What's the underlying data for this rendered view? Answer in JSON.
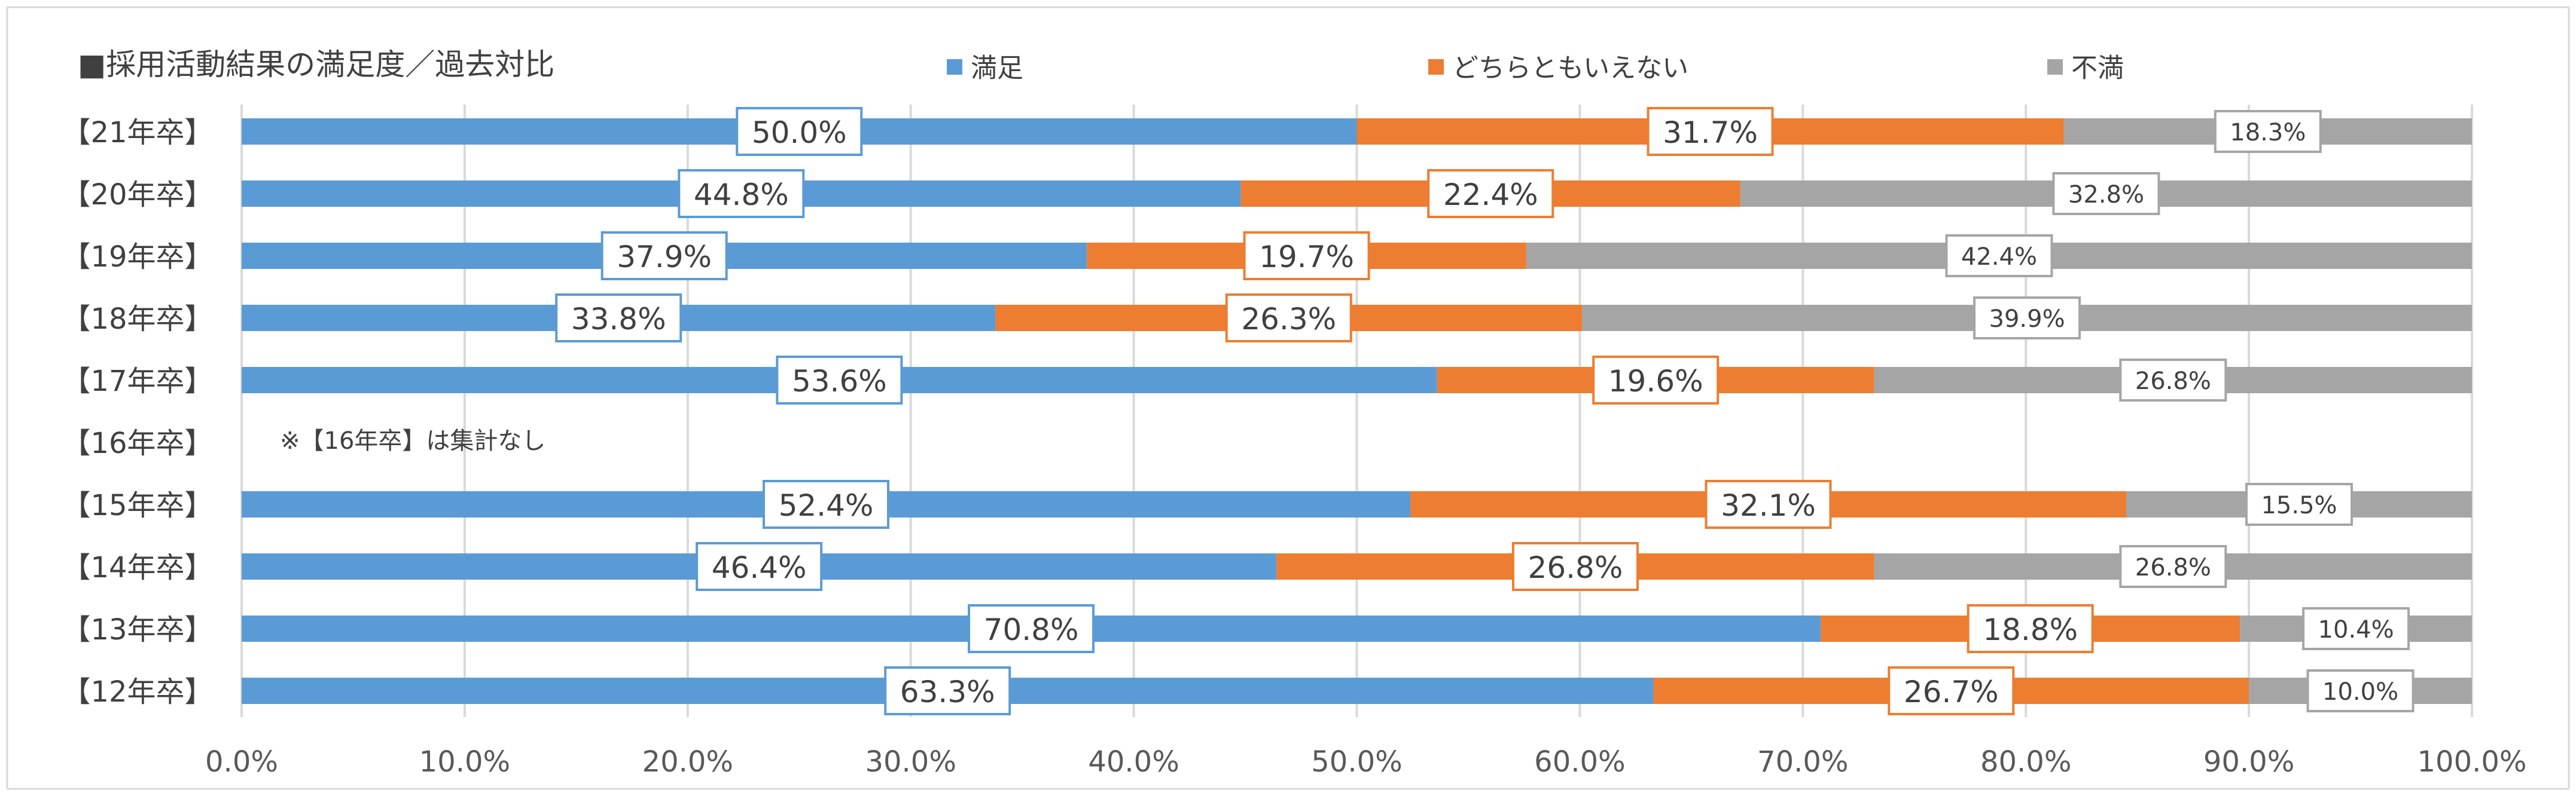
{
  "chart_data": {
    "type": "bar",
    "orientation": "horizontal",
    "stacked": true,
    "title": "■採用活動結果の満足度／過去対比",
    "legend_position": "top",
    "grid": true,
    "xlim": [
      0,
      100
    ],
    "x_ticks": [
      "0.0%",
      "10.0%",
      "20.0%",
      "30.0%",
      "40.0%",
      "50.0%",
      "60.0%",
      "70.0%",
      "80.0%",
      "90.0%",
      "100.0%"
    ],
    "categories": [
      "【21年卒】",
      "【20年卒】",
      "【19年卒】",
      "【18年卒】",
      "【17年卒】",
      "【16年卒】",
      "【15年卒】",
      "【14年卒】",
      "【13年卒】",
      "【12年卒】"
    ],
    "series": [
      {
        "name": "満足",
        "color": "#5b9bd5",
        "values": [
          50.0,
          44.8,
          37.9,
          33.8,
          53.6,
          null,
          52.4,
          46.4,
          70.8,
          63.3
        ],
        "labels": [
          "50.0%",
          "44.8%",
          "37.9%",
          "33.8%",
          "53.6%",
          "",
          "52.4%",
          "46.4%",
          "70.8%",
          "63.3%"
        ]
      },
      {
        "name": "どちらともいえない",
        "color": "#ed7d31",
        "values": [
          31.7,
          22.4,
          19.7,
          26.3,
          19.6,
          null,
          32.1,
          26.8,
          18.8,
          26.7
        ],
        "labels": [
          "31.7%",
          "22.4%",
          "19.7%",
          "26.3%",
          "19.6%",
          "",
          "32.1%",
          "26.8%",
          "18.8%",
          "26.7%"
        ]
      },
      {
        "name": "不満",
        "color": "#a5a5a5",
        "values": [
          18.3,
          32.8,
          42.4,
          39.9,
          26.8,
          null,
          15.5,
          26.8,
          10.4,
          10.0
        ],
        "labels": [
          "18.3%",
          "32.8%",
          "42.4%",
          "39.9%",
          "26.8%",
          "",
          "15.5%",
          "26.8%",
          "10.4%",
          "10.0%"
        ]
      }
    ],
    "annotations": [
      {
        "category": "【16年卒】",
        "text": "※【16年卒】は集計なし"
      }
    ]
  }
}
